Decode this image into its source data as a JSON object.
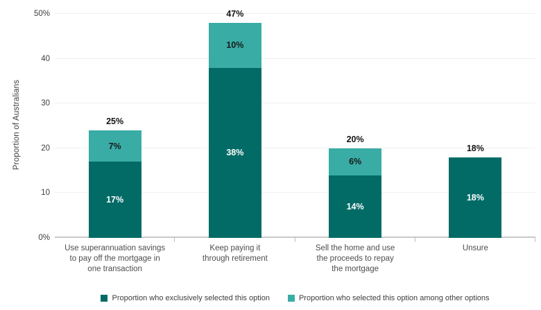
{
  "chart_data": {
    "type": "bar",
    "stacked": true,
    "title": "",
    "xlabel": "",
    "ylabel": "Proportion of Australians",
    "ylim": [
      0,
      50
    ],
    "grid": true,
    "legend_position": "bottom",
    "yticks": [
      {
        "value": 0,
        "label": "0%"
      },
      {
        "value": 10,
        "label": "10"
      },
      {
        "value": 20,
        "label": "20"
      },
      {
        "value": 30,
        "label": "30"
      },
      {
        "value": 40,
        "label": "40"
      },
      {
        "value": 50,
        "label": "50%"
      }
    ],
    "categories": [
      "Use superannuation savings to pay off the mortgage in one transaction",
      "Keep paying it through retirement",
      "Sell the home and use the proceeds to repay the mortgage",
      "Unsure"
    ],
    "category_lines": [
      [
        "Use superannuation savings",
        "to pay off the mortgage in",
        "one transaction"
      ],
      [
        "Keep paying it",
        "through retirement"
      ],
      [
        "Sell the home and use",
        "the proceeds to repay",
        "the mortgage"
      ],
      [
        "Unsure"
      ]
    ],
    "series": [
      {
        "name": "Proportion who exclusively selected this option",
        "color": "#026B66",
        "label_color": "#ffffff",
        "values": [
          17,
          38,
          14,
          18
        ],
        "value_labels": [
          "17%",
          "38%",
          "14%",
          "18%"
        ]
      },
      {
        "name": "Proportion who selected this option among other options",
        "color": "#38ACA5",
        "label_color": "#1a1a1a",
        "values": [
          7,
          10,
          6,
          0
        ],
        "value_labels": [
          "7%",
          "10%",
          "6%",
          ""
        ]
      }
    ],
    "total_labels": [
      "25%",
      "47%",
      "20%",
      "18%"
    ]
  },
  "colors": {
    "axis_line": "#c9c9c9",
    "gridline": "#efefef",
    "tick": "#bfbfbf",
    "tick_label": "#3d3d3d",
    "category_label": "#4d4d4d",
    "total_label": "#141414",
    "legend_label": "#3d3d3d"
  }
}
